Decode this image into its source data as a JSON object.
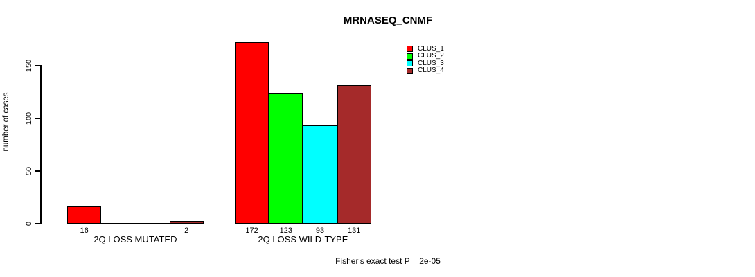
{
  "title": "MRNASEQ_CNMF",
  "ylabel": "number of cases",
  "footer": "Fisher's exact test P = 2e-05",
  "chart_data": {
    "type": "bar",
    "title": "MRNASEQ_CNMF",
    "ylabel": "number of cases",
    "xlabel": "",
    "categories": [
      "2Q LOSS MUTATED",
      "2Q LOSS WILD-TYPE"
    ],
    "series": [
      {
        "name": "CLUS_1",
        "color": "#ff0000",
        "values": [
          16,
          172
        ]
      },
      {
        "name": "CLUS_2",
        "color": "#00ff00",
        "values": [
          0,
          123
        ]
      },
      {
        "name": "CLUS_3",
        "color": "#00ffff",
        "values": [
          0,
          93
        ]
      },
      {
        "name": "CLUS_4",
        "color": "#a52a2a",
        "values": [
          2,
          131
        ]
      }
    ],
    "bar_labels": [
      [
        "16",
        "",
        "",
        "2"
      ],
      [
        "172",
        "123",
        "93",
        "131"
      ]
    ],
    "yticks": [
      0,
      50,
      100,
      150
    ],
    "ylim": [
      0,
      180
    ],
    "grid": false,
    "legend": {
      "position": "top-right",
      "entries": [
        {
          "label": "CLUS_1",
          "color": "#ff0000"
        },
        {
          "label": "CLUS_2",
          "color": "#00ff00"
        },
        {
          "label": "CLUS_3",
          "color": "#00ffff"
        },
        {
          "label": "CLUS_4",
          "color": "#a52a2a"
        }
      ]
    },
    "annotation": "Fisher's exact test P = 2e-05",
    "axis_color": "#000000",
    "background_color": "#ffffff"
  }
}
